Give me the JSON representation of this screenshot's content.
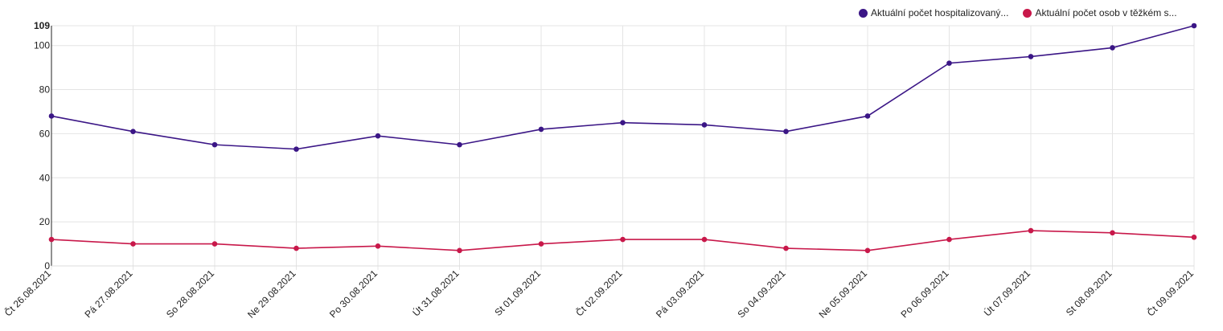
{
  "chart_data": {
    "type": "line",
    "categories": [
      "Čt 26.08.2021",
      "Pá 27.08.2021",
      "So 28.08.2021",
      "Ne 29.08.2021",
      "Po 30.08.2021",
      "Út 31.08.2021",
      "St 01.09.2021",
      "Čt 02.09.2021",
      "Pá 03.09.2021",
      "So 04.09.2021",
      "Ne 05.09.2021",
      "Po 06.09.2021",
      "Út 07.09.2021",
      "St 08.09.2021",
      "Čt 09.09.2021"
    ],
    "series": [
      {
        "name": "Aktuální počet hospitalizovaný...",
        "color": "#3b1686",
        "values": [
          68,
          61,
          55,
          53,
          59,
          55,
          62,
          65,
          64,
          61,
          68,
          92,
          95,
          99,
          109
        ]
      },
      {
        "name": "Aktuální počet osob v těžkém s...",
        "color": "#c8184a",
        "values": [
          12,
          10,
          10,
          8,
          9,
          7,
          10,
          12,
          12,
          8,
          7,
          12,
          16,
          15,
          13
        ]
      }
    ],
    "ylim": [
      0,
      109
    ],
    "yticks": [
      0,
      20,
      40,
      60,
      80,
      100,
      109
    ],
    "grid": true,
    "legend_position": "top-right"
  }
}
